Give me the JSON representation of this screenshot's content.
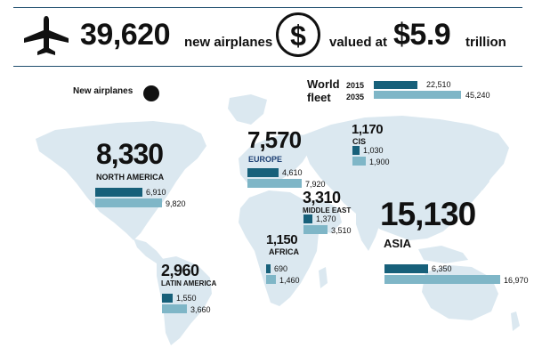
{
  "header": {
    "total_airplanes": "39,620",
    "airplanes_text": "new airplanes",
    "valued_text": "valued at",
    "total_value": "$5.9",
    "value_unit": "trillion",
    "airplane_icon": "airplane-icon",
    "dollar_icon": "dollar-circle-icon"
  },
  "legend": {
    "new_airplanes_label": "New airplanes",
    "world_fleet_label_1": "World",
    "world_fleet_label_2": "fleet",
    "year_2015": "2015",
    "year_2035": "2035",
    "fleet_2015": "22,510",
    "fleet_2035": "45,240"
  },
  "colors": {
    "bar_2015": "#17607a",
    "bar_2035": "#7fb6c7",
    "map": "#dbe8f0",
    "rule": "#1f4e6e",
    "europe_text": "#1c3f73"
  },
  "chart_data": {
    "type": "bar",
    "title": "",
    "series": [
      {
        "name": "2015",
        "values": [
          6910,
          4610,
          1030,
          1370,
          690,
          1550,
          6350
        ]
      },
      {
        "name": "2035",
        "values": [
          9820,
          7920,
          1900,
          3510,
          1460,
          3660,
          16970
        ]
      }
    ],
    "categories": [
      "NORTH AMERICA",
      "EUROPE",
      "CIS",
      "MIDDLE EAST",
      "AFRICA",
      "LATIN AMERICA",
      "ASIA"
    ],
    "new_airplanes": [
      8330,
      7570,
      1170,
      3310,
      1150,
      2960,
      15130
    ],
    "world_fleet": {
      "2015": 22510,
      "2035": 45240
    }
  },
  "regions": [
    {
      "key": "na",
      "name": "NORTH AMERICA",
      "new": "8,330",
      "v2015": 6910,
      "v2035": 9820,
      "l2015": "6,910",
      "l2035": "9,820"
    },
    {
      "key": "eu",
      "name": "EUROPE",
      "new": "7,570",
      "v2015": 4610,
      "v2035": 7920,
      "l2015": "4,610",
      "l2035": "7,920"
    },
    {
      "key": "cis",
      "name": "CIS",
      "new": "1,170",
      "v2015": 1030,
      "v2035": 1900,
      "l2015": "1,030",
      "l2035": "1,900"
    },
    {
      "key": "me",
      "name": "MIDDLE EAST",
      "new": "3,310",
      "v2015": 1370,
      "v2035": 3510,
      "l2015": "1,370",
      "l2035": "3,510"
    },
    {
      "key": "af",
      "name": "AFRICA",
      "new": "1,150",
      "v2015": 690,
      "v2035": 1460,
      "l2015": "690",
      "l2035": "1,460"
    },
    {
      "key": "la",
      "name": "LATIN AMERICA",
      "new": "2,960",
      "v2015": 1550,
      "v2035": 3660,
      "l2015": "1,550",
      "l2035": "3,660"
    },
    {
      "key": "as",
      "name": "ASIA",
      "new": "15,130",
      "v2015": 6350,
      "v2035": 16970,
      "l2015": "6,350",
      "l2035": "16,970"
    }
  ]
}
